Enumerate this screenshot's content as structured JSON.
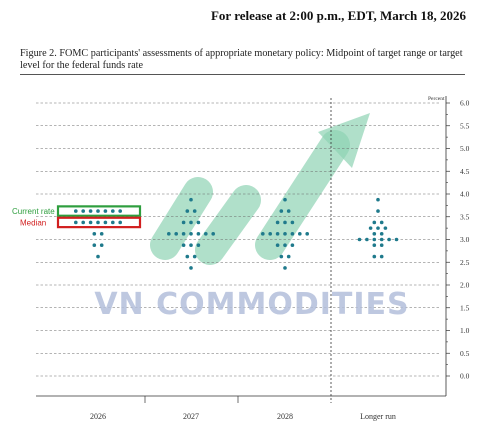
{
  "header": {
    "release": "For release at 2:00 p.m., EDT, March 18, 2026",
    "caption": "Figure 2. FOMC participants' assessments of appropriate monetary policy: Midpoint of target range or target level for the federal funds rate"
  },
  "chart_data": {
    "type": "scatter",
    "unit_label": "Percent",
    "ylim": [
      -0.25,
      6.0
    ],
    "ytick_step": 0.5,
    "categories": [
      "2026",
      "2027",
      "2028",
      "Longer run"
    ],
    "dot_color": "#1f7a8c",
    "grid": "dashed horizontal gridlines",
    "columns": [
      {
        "category": "2026",
        "dots": [
          {
            "y": 3.625,
            "count": 7
          },
          {
            "y": 3.375,
            "count": 7
          },
          {
            "y": 3.125,
            "count": 2
          },
          {
            "y": 2.875,
            "count": 2
          },
          {
            "y": 2.625,
            "count": 1
          }
        ]
      },
      {
        "category": "2027",
        "dots": [
          {
            "y": 3.875,
            "count": 1
          },
          {
            "y": 3.625,
            "count": 2
          },
          {
            "y": 3.375,
            "count": 3
          },
          {
            "y": 3.125,
            "count": 7
          },
          {
            "y": 2.875,
            "count": 3
          },
          {
            "y": 2.625,
            "count": 2
          },
          {
            "y": 2.375,
            "count": 1
          }
        ]
      },
      {
        "category": "2028",
        "dots": [
          {
            "y": 3.875,
            "count": 1
          },
          {
            "y": 3.625,
            "count": 2
          },
          {
            "y": 3.375,
            "count": 3
          },
          {
            "y": 3.125,
            "count": 7
          },
          {
            "y": 2.875,
            "count": 3
          },
          {
            "y": 2.625,
            "count": 2
          },
          {
            "y": 2.375,
            "count": 1
          }
        ]
      },
      {
        "category": "Longer run",
        "dots": [
          {
            "y": 3.875,
            "count": 1
          },
          {
            "y": 3.625,
            "count": 1
          },
          {
            "y": 3.375,
            "count": 2
          },
          {
            "y": 3.25,
            "count": 3
          },
          {
            "y": 3.125,
            "count": 2
          },
          {
            "y": 3.0,
            "count": 6
          },
          {
            "y": 2.875,
            "count": 2
          },
          {
            "y": 2.625,
            "count": 2
          }
        ]
      }
    ],
    "annotations": [
      {
        "label": "Current rate",
        "color": "#2e9e3e",
        "y_range": [
          3.5,
          3.75
        ]
      },
      {
        "label": "Median",
        "color": "#d11f1f",
        "y_range": [
          3.25,
          3.5
        ]
      }
    ]
  },
  "watermark": {
    "text": "VN COMMODITIES",
    "color": "#8fd3b4"
  }
}
